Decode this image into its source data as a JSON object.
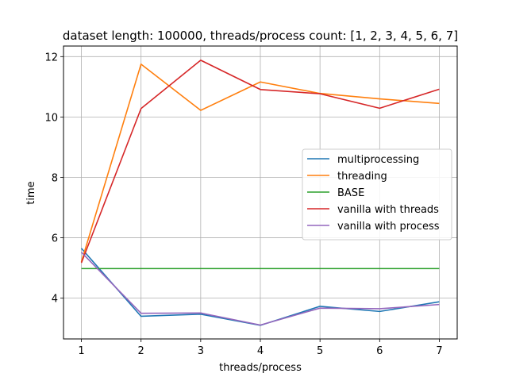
{
  "chart_data": {
    "type": "line",
    "title": "dataset length: 100000, threads/process count: [1, 2, 3, 4, 5, 6, 7]",
    "xlabel": "threads/process",
    "ylabel": "time",
    "x": [
      1,
      2,
      3,
      4,
      5,
      6,
      7
    ],
    "xlim": [
      0.7,
      7.3
    ],
    "ylim": [
      2.65,
      12.35
    ],
    "xticks": [
      1,
      2,
      3,
      4,
      5,
      6,
      7
    ],
    "yticks": [
      4,
      6,
      8,
      10,
      12
    ],
    "grid": true,
    "legend_position": "center-right",
    "series": [
      {
        "name": "multiprocessing",
        "color": "#1f77b4",
        "values": [
          5.65,
          3.4,
          3.47,
          3.1,
          3.73,
          3.56,
          3.88
        ]
      },
      {
        "name": "threading",
        "color": "#ff7f0e",
        "values": [
          5.2,
          11.75,
          10.22,
          11.16,
          10.78,
          10.6,
          10.45
        ]
      },
      {
        "name": "BASE",
        "color": "#2ca02c",
        "values": [
          4.98,
          4.98,
          4.98,
          4.98,
          4.98,
          4.98,
          4.98
        ]
      },
      {
        "name": "vanilla with threads",
        "color": "#d62728",
        "values": [
          5.17,
          10.28,
          11.88,
          10.91,
          10.77,
          10.29,
          10.92
        ]
      },
      {
        "name": "vanilla with process",
        "color": "#9467bd",
        "values": [
          5.52,
          3.5,
          3.51,
          3.11,
          3.67,
          3.65,
          3.79
        ]
      }
    ]
  }
}
